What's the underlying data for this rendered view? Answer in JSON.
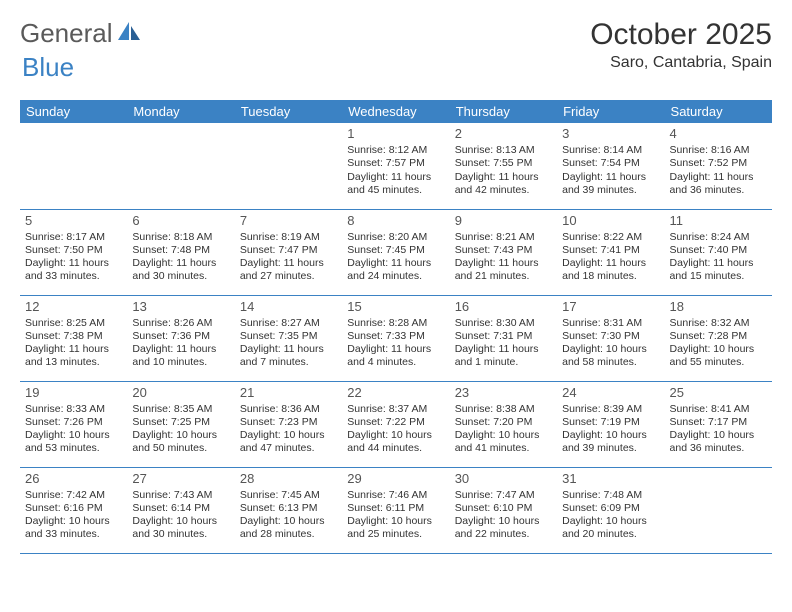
{
  "logo": {
    "part1": "General",
    "part2": "Blue"
  },
  "title": "October 2025",
  "location": "Saro, Cantabria, Spain",
  "colors": {
    "header_bg": "#3b82c4",
    "header_text": "#ffffff",
    "border": "#3b82c4",
    "text": "#333333",
    "logo_gray": "#5a5a5a",
    "logo_blue": "#3b82c4"
  },
  "day_headers": [
    "Sunday",
    "Monday",
    "Tuesday",
    "Wednesday",
    "Thursday",
    "Friday",
    "Saturday"
  ],
  "weeks": [
    [
      {
        "n": "",
        "lines": []
      },
      {
        "n": "",
        "lines": []
      },
      {
        "n": "",
        "lines": []
      },
      {
        "n": "1",
        "lines": [
          "Sunrise: 8:12 AM",
          "Sunset: 7:57 PM",
          "Daylight: 11 hours",
          "and 45 minutes."
        ]
      },
      {
        "n": "2",
        "lines": [
          "Sunrise: 8:13 AM",
          "Sunset: 7:55 PM",
          "Daylight: 11 hours",
          "and 42 minutes."
        ]
      },
      {
        "n": "3",
        "lines": [
          "Sunrise: 8:14 AM",
          "Sunset: 7:54 PM",
          "Daylight: 11 hours",
          "and 39 minutes."
        ]
      },
      {
        "n": "4",
        "lines": [
          "Sunrise: 8:16 AM",
          "Sunset: 7:52 PM",
          "Daylight: 11 hours",
          "and 36 minutes."
        ]
      }
    ],
    [
      {
        "n": "5",
        "lines": [
          "Sunrise: 8:17 AM",
          "Sunset: 7:50 PM",
          "Daylight: 11 hours",
          "and 33 minutes."
        ]
      },
      {
        "n": "6",
        "lines": [
          "Sunrise: 8:18 AM",
          "Sunset: 7:48 PM",
          "Daylight: 11 hours",
          "and 30 minutes."
        ]
      },
      {
        "n": "7",
        "lines": [
          "Sunrise: 8:19 AM",
          "Sunset: 7:47 PM",
          "Daylight: 11 hours",
          "and 27 minutes."
        ]
      },
      {
        "n": "8",
        "lines": [
          "Sunrise: 8:20 AM",
          "Sunset: 7:45 PM",
          "Daylight: 11 hours",
          "and 24 minutes."
        ]
      },
      {
        "n": "9",
        "lines": [
          "Sunrise: 8:21 AM",
          "Sunset: 7:43 PM",
          "Daylight: 11 hours",
          "and 21 minutes."
        ]
      },
      {
        "n": "10",
        "lines": [
          "Sunrise: 8:22 AM",
          "Sunset: 7:41 PM",
          "Daylight: 11 hours",
          "and 18 minutes."
        ]
      },
      {
        "n": "11",
        "lines": [
          "Sunrise: 8:24 AM",
          "Sunset: 7:40 PM",
          "Daylight: 11 hours",
          "and 15 minutes."
        ]
      }
    ],
    [
      {
        "n": "12",
        "lines": [
          "Sunrise: 8:25 AM",
          "Sunset: 7:38 PM",
          "Daylight: 11 hours",
          "and 13 minutes."
        ]
      },
      {
        "n": "13",
        "lines": [
          "Sunrise: 8:26 AM",
          "Sunset: 7:36 PM",
          "Daylight: 11 hours",
          "and 10 minutes."
        ]
      },
      {
        "n": "14",
        "lines": [
          "Sunrise: 8:27 AM",
          "Sunset: 7:35 PM",
          "Daylight: 11 hours",
          "and 7 minutes."
        ]
      },
      {
        "n": "15",
        "lines": [
          "Sunrise: 8:28 AM",
          "Sunset: 7:33 PM",
          "Daylight: 11 hours",
          "and 4 minutes."
        ]
      },
      {
        "n": "16",
        "lines": [
          "Sunrise: 8:30 AM",
          "Sunset: 7:31 PM",
          "Daylight: 11 hours",
          "and 1 minute."
        ]
      },
      {
        "n": "17",
        "lines": [
          "Sunrise: 8:31 AM",
          "Sunset: 7:30 PM",
          "Daylight: 10 hours",
          "and 58 minutes."
        ]
      },
      {
        "n": "18",
        "lines": [
          "Sunrise: 8:32 AM",
          "Sunset: 7:28 PM",
          "Daylight: 10 hours",
          "and 55 minutes."
        ]
      }
    ],
    [
      {
        "n": "19",
        "lines": [
          "Sunrise: 8:33 AM",
          "Sunset: 7:26 PM",
          "Daylight: 10 hours",
          "and 53 minutes."
        ]
      },
      {
        "n": "20",
        "lines": [
          "Sunrise: 8:35 AM",
          "Sunset: 7:25 PM",
          "Daylight: 10 hours",
          "and 50 minutes."
        ]
      },
      {
        "n": "21",
        "lines": [
          "Sunrise: 8:36 AM",
          "Sunset: 7:23 PM",
          "Daylight: 10 hours",
          "and 47 minutes."
        ]
      },
      {
        "n": "22",
        "lines": [
          "Sunrise: 8:37 AM",
          "Sunset: 7:22 PM",
          "Daylight: 10 hours",
          "and 44 minutes."
        ]
      },
      {
        "n": "23",
        "lines": [
          "Sunrise: 8:38 AM",
          "Sunset: 7:20 PM",
          "Daylight: 10 hours",
          "and 41 minutes."
        ]
      },
      {
        "n": "24",
        "lines": [
          "Sunrise: 8:39 AM",
          "Sunset: 7:19 PM",
          "Daylight: 10 hours",
          "and 39 minutes."
        ]
      },
      {
        "n": "25",
        "lines": [
          "Sunrise: 8:41 AM",
          "Sunset: 7:17 PM",
          "Daylight: 10 hours",
          "and 36 minutes."
        ]
      }
    ],
    [
      {
        "n": "26",
        "lines": [
          "Sunrise: 7:42 AM",
          "Sunset: 6:16 PM",
          "Daylight: 10 hours",
          "and 33 minutes."
        ]
      },
      {
        "n": "27",
        "lines": [
          "Sunrise: 7:43 AM",
          "Sunset: 6:14 PM",
          "Daylight: 10 hours",
          "and 30 minutes."
        ]
      },
      {
        "n": "28",
        "lines": [
          "Sunrise: 7:45 AM",
          "Sunset: 6:13 PM",
          "Daylight: 10 hours",
          "and 28 minutes."
        ]
      },
      {
        "n": "29",
        "lines": [
          "Sunrise: 7:46 AM",
          "Sunset: 6:11 PM",
          "Daylight: 10 hours",
          "and 25 minutes."
        ]
      },
      {
        "n": "30",
        "lines": [
          "Sunrise: 7:47 AM",
          "Sunset: 6:10 PM",
          "Daylight: 10 hours",
          "and 22 minutes."
        ]
      },
      {
        "n": "31",
        "lines": [
          "Sunrise: 7:48 AM",
          "Sunset: 6:09 PM",
          "Daylight: 10 hours",
          "and 20 minutes."
        ]
      },
      {
        "n": "",
        "lines": []
      }
    ]
  ]
}
